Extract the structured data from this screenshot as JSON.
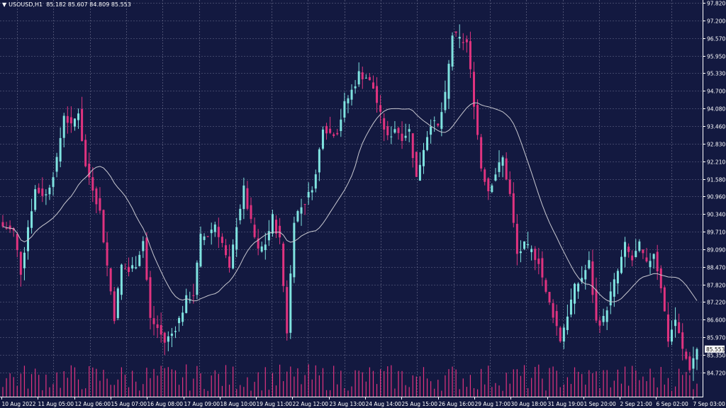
{
  "header": {
    "menu_glyph": "▼",
    "symbol": "USOUSD,H1",
    "ohlc": "85.182 85.607 84.809 85.553"
  },
  "colors": {
    "background": "#131940",
    "grid": "#6f7392",
    "bull": "#7fe3e0",
    "bear": "#e0337f",
    "volume": "#e0337f",
    "ma": "#c8c8d0",
    "axis_text": "#ffffff",
    "last_price_box": "#ffffff"
  },
  "chart_data": {
    "type": "candlestick",
    "symbol": "USOUSD",
    "timeframe": "H1",
    "y_ticks": [
      "97.820",
      "97.200",
      "96.570",
      "95.950",
      "95.330",
      "94.700",
      "94.080",
      "93.460",
      "92.830",
      "92.210",
      "91.580",
      "90.960",
      "90.340",
      "89.710",
      "89.090",
      "88.470",
      "87.820",
      "87.220",
      "86.600",
      "85.970",
      "85.350",
      "84.720"
    ],
    "ylim": [
      84.35,
      97.82
    ],
    "x_ticks": [
      "10 Aug 2022",
      "11 Aug 05:00",
      "12 Aug 06:00",
      "15 Aug 07:00",
      "16 Aug 08:00",
      "17 Aug 09:00",
      "18 Aug 10:00",
      "19 Aug 11:00",
      "22 Aug 12:00",
      "23 Aug 13:00",
      "24 Aug 14:00",
      "25 Aug 15:00",
      "26 Aug 16:00",
      "29 Aug 17:00",
      "30 Aug 18:00",
      "31 Aug 19:00",
      "1 Sep 20:00",
      "2 Sep 21:00",
      "6 Sep 02:00",
      "7 Sep 03:00"
    ],
    "last_price": "85.553",
    "last_ohlc": {
      "open": 85.182,
      "high": 85.607,
      "low": 84.809,
      "close": 85.553
    },
    "close_path": [
      [
        0,
        89.9
      ],
      [
        3,
        89.7
      ],
      [
        5,
        88.3
      ],
      [
        7,
        89.9
      ],
      [
        9,
        91.2
      ],
      [
        12,
        91.0
      ],
      [
        15,
        92.2
      ],
      [
        17,
        93.9
      ],
      [
        19,
        93.4
      ],
      [
        21,
        94.0
      ],
      [
        23,
        92.0
      ],
      [
        25,
        91.3
      ],
      [
        27,
        90.4
      ],
      [
        29,
        88.5
      ],
      [
        31,
        86.7
      ],
      [
        33,
        88.5
      ],
      [
        35,
        88.3
      ],
      [
        37,
        88.6
      ],
      [
        39,
        89.4
      ],
      [
        41,
        86.6
      ],
      [
        43,
        86.3
      ],
      [
        45,
        85.8
      ],
      [
        47,
        86.1
      ],
      [
        49,
        86.6
      ],
      [
        51,
        87.3
      ],
      [
        53,
        87.5
      ],
      [
        55,
        89.5
      ],
      [
        57,
        89.6
      ],
      [
        59,
        90.0
      ],
      [
        61,
        89.3
      ],
      [
        63,
        88.3
      ],
      [
        65,
        90.0
      ],
      [
        67,
        91.2
      ],
      [
        69,
        90.0
      ],
      [
        71,
        89.0
      ],
      [
        73,
        89.3
      ],
      [
        75,
        90.2
      ],
      [
        77,
        89.4
      ],
      [
        79,
        86.2
      ],
      [
        81,
        90.2
      ],
      [
        83,
        90.6
      ],
      [
        85,
        91.0
      ],
      [
        87,
        91.7
      ],
      [
        89,
        93.5
      ],
      [
        91,
        93.2
      ],
      [
        93,
        93.3
      ],
      [
        95,
        94.2
      ],
      [
        97,
        94.7
      ],
      [
        99,
        95.3
      ],
      [
        101,
        95.2
      ],
      [
        103,
        94.8
      ],
      [
        105,
        93.8
      ],
      [
        107,
        93.0
      ],
      [
        109,
        93.4
      ],
      [
        111,
        93.1
      ],
      [
        113,
        93.3
      ],
      [
        115,
        91.6
      ],
      [
        117,
        92.7
      ],
      [
        119,
        93.6
      ],
      [
        121,
        93.4
      ],
      [
        123,
        94.5
      ],
      [
        125,
        96.7
      ],
      [
        127,
        96.5
      ],
      [
        129,
        96.4
      ],
      [
        131,
        94.3
      ],
      [
        133,
        92.0
      ],
      [
        135,
        91.2
      ],
      [
        137,
        91.8
      ],
      [
        139,
        92.3
      ],
      [
        141,
        91.0
      ],
      [
        143,
        88.9
      ],
      [
        145,
        89.2
      ],
      [
        147,
        89.0
      ],
      [
        149,
        88.7
      ],
      [
        151,
        87.5
      ],
      [
        153,
        86.8
      ],
      [
        155,
        85.9
      ],
      [
        157,
        86.8
      ],
      [
        159,
        87.7
      ],
      [
        161,
        88.1
      ],
      [
        163,
        88.6
      ],
      [
        165,
        86.5
      ],
      [
        167,
        86.6
      ],
      [
        169,
        87.5
      ],
      [
        171,
        88.3
      ],
      [
        173,
        89.2
      ],
      [
        175,
        88.7
      ],
      [
        177,
        89.2
      ],
      [
        179,
        88.5
      ],
      [
        181,
        89.0
      ],
      [
        183,
        87.8
      ],
      [
        185,
        85.9
      ],
      [
        187,
        86.6
      ],
      [
        189,
        85.5
      ],
      [
        191,
        84.9
      ],
      [
        193,
        85.55
      ]
    ],
    "ma_period": 20
  }
}
